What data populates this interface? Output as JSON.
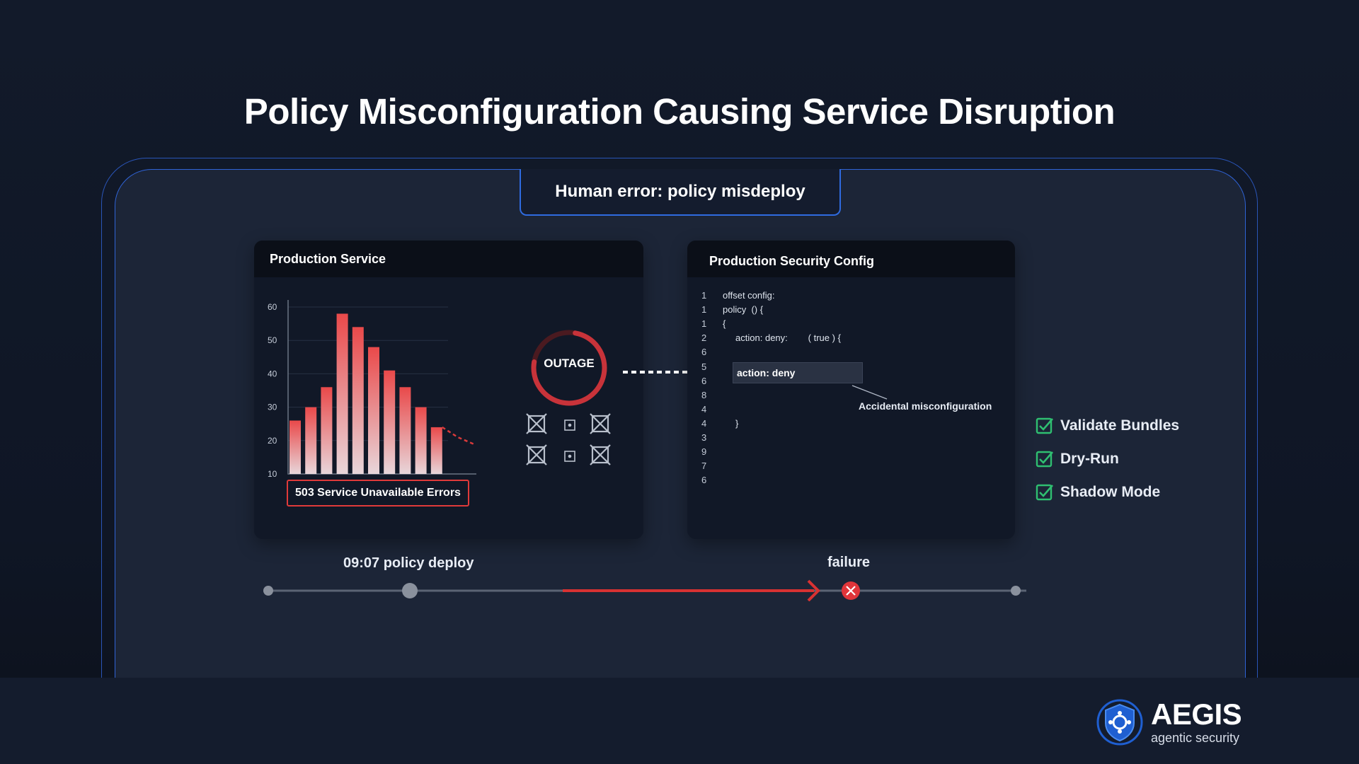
{
  "title": "Policy Misconfiguration Causing Service Disruption",
  "badge": "Human error: policy misdeploy",
  "production_panel": {
    "title": "Production Service",
    "y_ticks": [
      "60",
      "50",
      "40",
      "30",
      "20",
      "10"
    ],
    "error_label": "503 Service Unavailable Errors",
    "outage_label": "OUTAGE"
  },
  "chart_data": {
    "type": "bar",
    "title": "",
    "ylabel": "",
    "xlabel": "",
    "ylim": [
      10,
      60
    ],
    "values": [
      26,
      30,
      36,
      58,
      54,
      48,
      41,
      36,
      30,
      24
    ],
    "trend_tail": [
      24,
      21,
      19
    ],
    "series_color": "#e04848"
  },
  "config_panel": {
    "title": "Production Security Config",
    "lines": [
      {
        "num": "1",
        "text": "offset config:"
      },
      {
        "num": "1",
        "text": "policy  () {"
      },
      {
        "num": "1",
        "text": "{"
      },
      {
        "num": "2",
        "text": "     action: deny:        ( true ) {"
      },
      {
        "num": "6",
        "text": ""
      },
      {
        "num": "5",
        "text": ""
      },
      {
        "num": "6",
        "text": ""
      },
      {
        "num": "8",
        "text": ""
      },
      {
        "num": "4",
        "text": ""
      },
      {
        "num": "4",
        "text": "     }"
      },
      {
        "num": "3",
        "text": ""
      },
      {
        "num": "9",
        "text": ""
      },
      {
        "num": "7",
        "text": ""
      },
      {
        "num": "6",
        "text": ""
      }
    ],
    "highlight": "action: deny",
    "annotation": "Accidental misconfiguration"
  },
  "checks": [
    "Validate Bundles",
    "Dry-Run",
    "Shadow Mode"
  ],
  "timeline": {
    "deploy_label": "09:07 policy deploy",
    "failure_label": "failure"
  },
  "logo": {
    "name": "AEGIS",
    "tagline": "agentic security"
  },
  "colors": {
    "accent_blue": "#2f6be0",
    "error_red": "#e03a3a",
    "check_green": "#2fbf71"
  }
}
